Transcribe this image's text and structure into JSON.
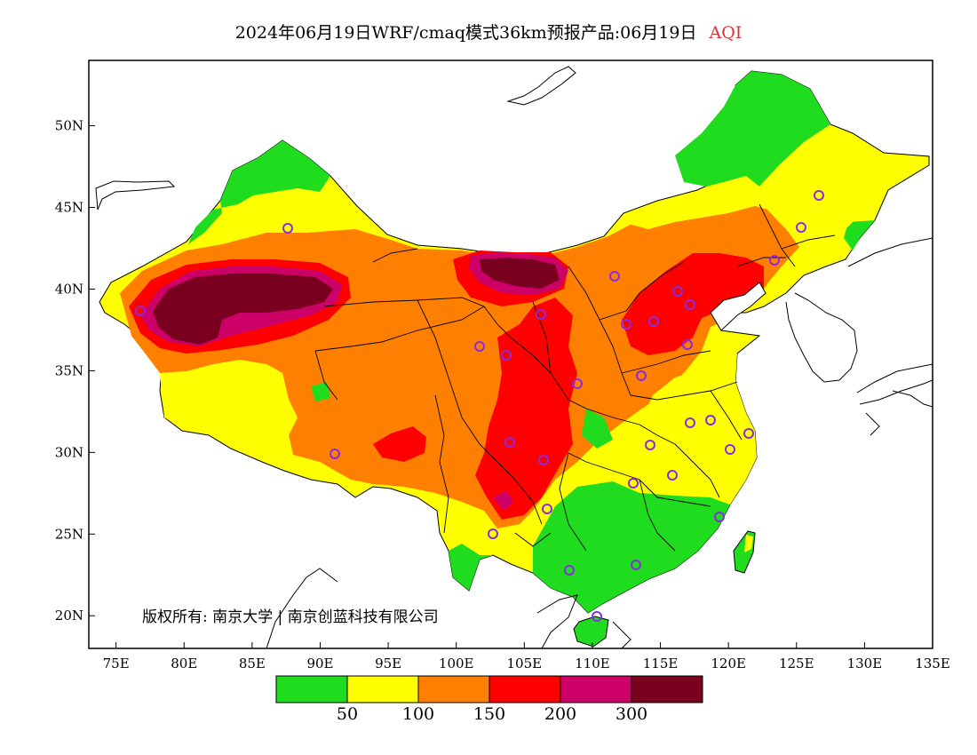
{
  "title": {
    "text": "2024年06月19日WRF/cmaq模式36km预报产品:06月19日",
    "variable": "AQI",
    "variable_color": "#e0303a"
  },
  "axes": {
    "lat_labels": [
      "50N",
      "45N",
      "40N",
      "35N",
      "30N",
      "25N",
      "20N"
    ],
    "lat_values": [
      50,
      45,
      40,
      35,
      30,
      25,
      20
    ],
    "lon_labels": [
      "75E",
      "80E",
      "85E",
      "90E",
      "95E",
      "100E",
      "105E",
      "110E",
      "115E",
      "120E",
      "125E",
      "130E",
      "135E"
    ],
    "lon_values": [
      75,
      80,
      85,
      90,
      95,
      100,
      105,
      110,
      115,
      120,
      125,
      130,
      135
    ],
    "lat_range": [
      18,
      54
    ],
    "lon_range": [
      73,
      135
    ]
  },
  "copyright": "版权所有: 南京大学 | 南京创蓝科技有限公司",
  "legend": {
    "colors": [
      "#1fdc1f",
      "#ffff00",
      "#ff8000",
      "#ff0000",
      "#cc0066",
      "#7a0020"
    ],
    "labels": [
      "50",
      "100",
      "150",
      "200",
      "300"
    ]
  },
  "category_colors": {
    "good": "#1fdc1f",
    "moderate": "#ffff00",
    "unhealthy_sensitive": "#ff8000",
    "unhealthy": "#ff0000",
    "very_unhealthy": "#cc0066",
    "hazardous": "#7a0020",
    "station_marker": "#8a2be2"
  }
}
